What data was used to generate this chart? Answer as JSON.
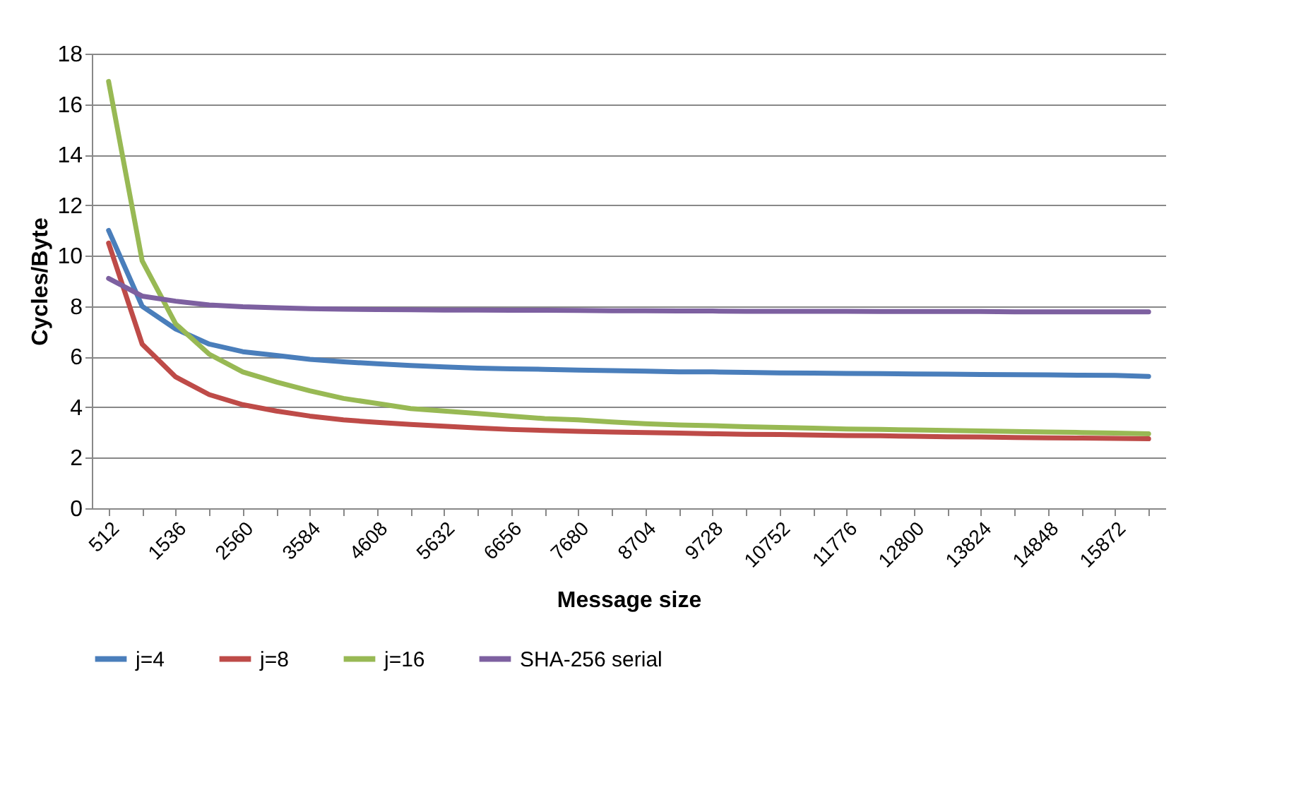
{
  "chart_data": {
    "type": "line",
    "xlabel": "Message size",
    "ylabel": "Cycles/Byte",
    "categories": [
      "512",
      null,
      "1536",
      null,
      "2560",
      null,
      "3584",
      null,
      "4608",
      null,
      "5632",
      null,
      "6656",
      null,
      "7680",
      null,
      "8704",
      null,
      "9728",
      null,
      "10752",
      null,
      "11776",
      null,
      "12800",
      null,
      "13824",
      null,
      "14848",
      null,
      "15872",
      null
    ],
    "ylim": [
      0,
      18
    ],
    "yticks": [
      0,
      2,
      4,
      6,
      8,
      10,
      12,
      14,
      16,
      18
    ],
    "grid": "y",
    "legend": "bottom",
    "line_style": "solid",
    "series": [
      {
        "name": "j=4",
        "color": "#4a7ebb",
        "values": [
          11.0,
          8.0,
          7.1,
          6.5,
          6.2,
          6.05,
          5.9,
          5.8,
          5.72,
          5.65,
          5.6,
          5.55,
          5.52,
          5.5,
          5.47,
          5.45,
          5.43,
          5.4,
          5.4,
          5.38,
          5.36,
          5.35,
          5.34,
          5.33,
          5.32,
          5.31,
          5.3,
          5.29,
          5.28,
          5.27,
          5.26,
          5.22
        ]
      },
      {
        "name": "j=8",
        "color": "#be4b48",
        "values": [
          10.5,
          6.5,
          5.2,
          4.5,
          4.1,
          3.85,
          3.65,
          3.5,
          3.4,
          3.32,
          3.25,
          3.18,
          3.12,
          3.08,
          3.05,
          3.02,
          3.0,
          2.98,
          2.95,
          2.93,
          2.92,
          2.9,
          2.88,
          2.87,
          2.85,
          2.83,
          2.82,
          2.8,
          2.79,
          2.78,
          2.77,
          2.75
        ]
      },
      {
        "name": "j=16",
        "color": "#98b954",
        "values": [
          16.9,
          9.8,
          7.3,
          6.1,
          5.4,
          5.0,
          4.65,
          4.35,
          4.15,
          3.95,
          3.85,
          3.75,
          3.65,
          3.55,
          3.5,
          3.42,
          3.35,
          3.3,
          3.27,
          3.23,
          3.2,
          3.17,
          3.14,
          3.12,
          3.1,
          3.08,
          3.06,
          3.04,
          3.02,
          3.0,
          2.98,
          2.95
        ]
      },
      {
        "name": "SHA-256 serial",
        "color": "#7d60a0",
        "values": [
          9.1,
          8.4,
          8.2,
          8.05,
          7.98,
          7.94,
          7.9,
          7.88,
          7.87,
          7.86,
          7.85,
          7.85,
          7.84,
          7.84,
          7.83,
          7.82,
          7.82,
          7.81,
          7.81,
          7.8,
          7.8,
          7.8,
          7.8,
          7.79,
          7.79,
          7.79,
          7.79,
          7.78,
          7.78,
          7.78,
          7.78,
          7.78
        ]
      }
    ]
  }
}
